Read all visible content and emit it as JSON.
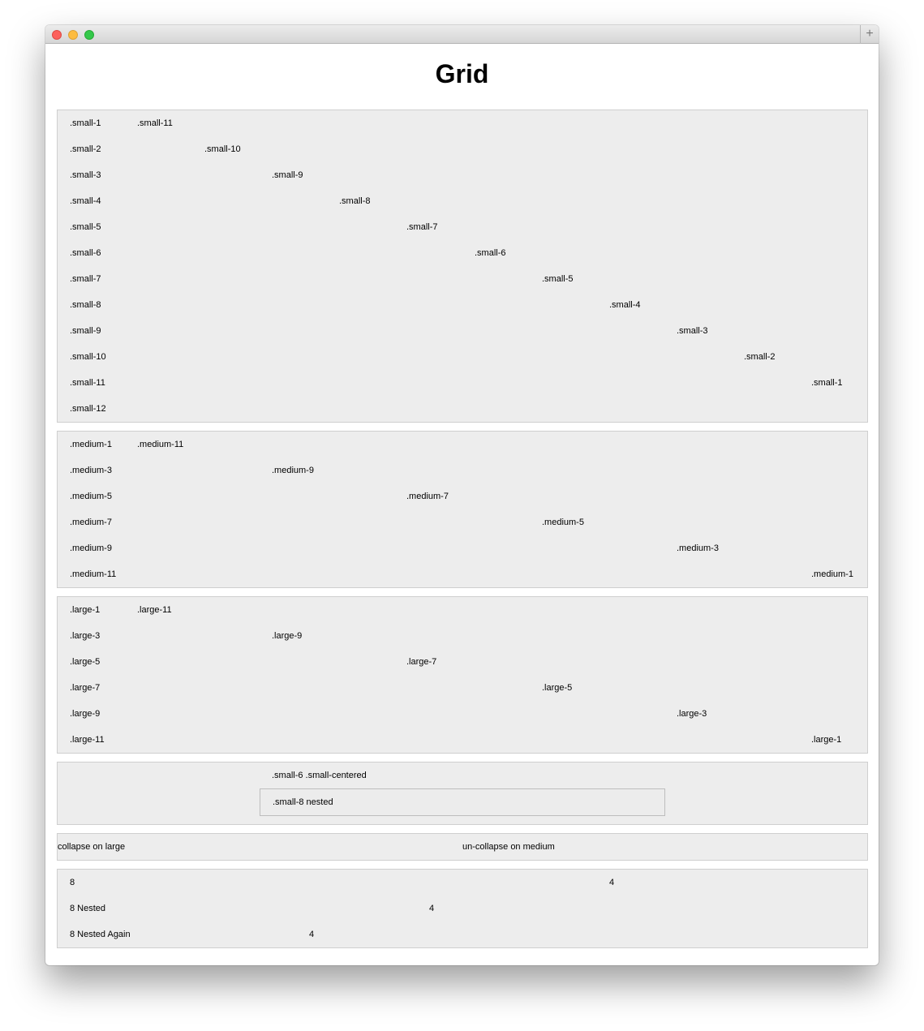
{
  "page": {
    "title": "Grid"
  },
  "window": {
    "new_tab_symbol": "+"
  },
  "small_section": {
    "rows": [
      [
        ".small-1",
        ".small-11"
      ],
      [
        ".small-2",
        ".small-10"
      ],
      [
        ".small-3",
        ".small-9"
      ],
      [
        ".small-4",
        ".small-8"
      ],
      [
        ".small-5",
        ".small-7"
      ],
      [
        ".small-6",
        ".small-6"
      ],
      [
        ".small-7",
        ".small-5"
      ],
      [
        ".small-8",
        ".small-4"
      ],
      [
        ".small-9",
        ".small-3"
      ],
      [
        ".small-10",
        ".small-2"
      ],
      [
        ".small-11",
        ".small-1"
      ],
      [
        ".small-12"
      ]
    ]
  },
  "medium_section": {
    "rows": [
      [
        ".medium-1",
        ".medium-11"
      ],
      [
        ".medium-3",
        ".medium-9"
      ],
      [
        ".medium-5",
        ".medium-7"
      ],
      [
        ".medium-7",
        ".medium-5"
      ],
      [
        ".medium-9",
        ".medium-3"
      ],
      [
        ".medium-11",
        ".medium-1"
      ]
    ]
  },
  "large_section": {
    "rows": [
      [
        ".large-1",
        ".large-11"
      ],
      [
        ".large-3",
        ".large-9"
      ],
      [
        ".large-5",
        ".large-7"
      ],
      [
        ".large-7",
        ".large-5"
      ],
      [
        ".large-9",
        ".large-3"
      ],
      [
        ".large-11",
        ".large-1"
      ]
    ]
  },
  "centered_section": {
    "centered_label": ".small-6 .small-centered",
    "nested_label": ".small-8 nested"
  },
  "collapse_section": {
    "left_label": "collapse on large",
    "right_label": "un-collapse on medium"
  },
  "nested_section": {
    "rows": [
      [
        "8",
        "4"
      ],
      [
        "8 Nested",
        "4"
      ],
      [
        "8 Nested Again",
        "4"
      ]
    ]
  }
}
